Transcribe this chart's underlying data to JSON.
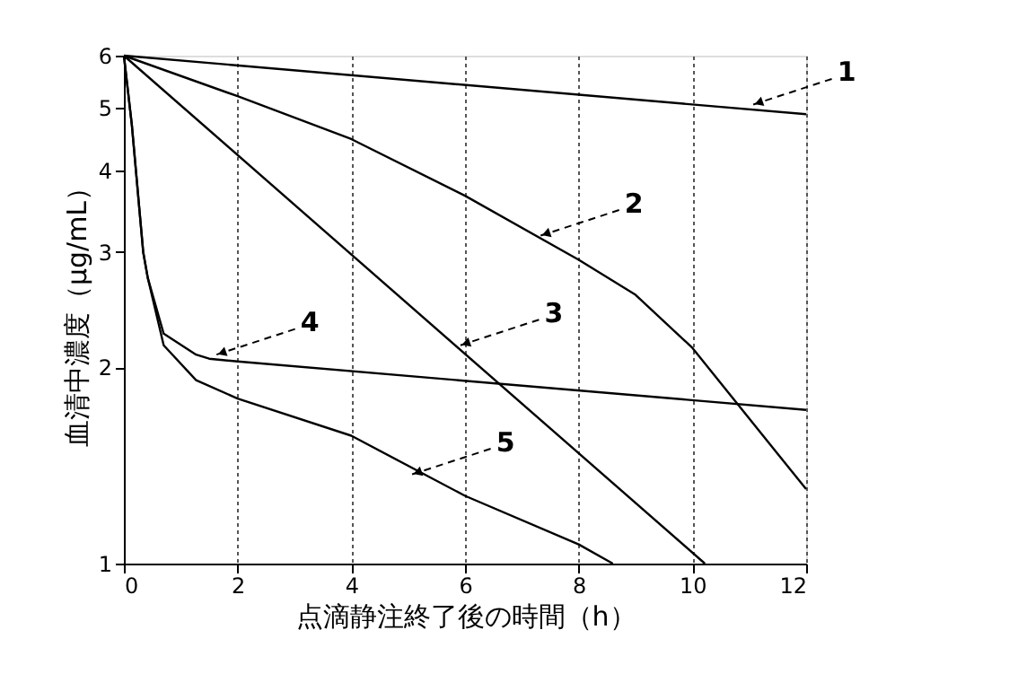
{
  "chart_data": {
    "type": "line",
    "xlabel": "点滴静注終了後の時間（h）",
    "ylabel": "血清中濃度（μg/mL）",
    "xlim": [
      0,
      12
    ],
    "xticks": [
      0,
      2,
      4,
      6,
      8,
      10,
      12
    ],
    "ylim": [
      1,
      6
    ],
    "yticks": [
      1,
      2,
      3,
      4,
      5,
      6
    ],
    "log": "y",
    "grid": "x",
    "marker": "none",
    "line_style": "solid",
    "series": [
      {
        "color": "#000000",
        "x": [
          0,
          12
        ],
        "values": [
          6,
          4.88
        ]
      },
      {
        "color": "#000000",
        "x": [
          0,
          2,
          4,
          6,
          8,
          9,
          10,
          12
        ],
        "values": [
          6,
          5.2,
          4.47,
          3.66,
          2.92,
          2.58,
          2.14,
          1.3
        ]
      },
      {
        "color": "#000000",
        "x": [
          0,
          10.22
        ],
        "values": [
          6,
          1
        ]
      },
      {
        "color": "#000000",
        "x": [
          0,
          0.14,
          0.34,
          0.42,
          0.7,
          1.27,
          1.5,
          2,
          12
        ],
        "values": [
          6,
          4.7,
          3.0,
          2.74,
          2.25,
          2.09,
          2.06,
          2.04,
          1.72
        ]
      },
      {
        "color": "#000000",
        "x": [
          0,
          0.14,
          0.34,
          0.42,
          0.7,
          1.27,
          2,
          4,
          6,
          8,
          8.6
        ],
        "values": [
          6,
          4.7,
          3.0,
          2.74,
          2.16,
          1.91,
          1.79,
          1.57,
          1.27,
          1.07,
          1
        ]
      }
    ],
    "annotations": [
      {
        "text": "1",
        "x": 11.07,
        "y": 5.05
      },
      {
        "text": "2",
        "x": 7.33,
        "y": 3.18
      },
      {
        "text": "3",
        "x": 5.92,
        "y": 2.16
      },
      {
        "text": "4",
        "x": 1.63,
        "y": 2.09
      },
      {
        "text": "5",
        "x": 5.07,
        "y": 1.37
      }
    ]
  }
}
